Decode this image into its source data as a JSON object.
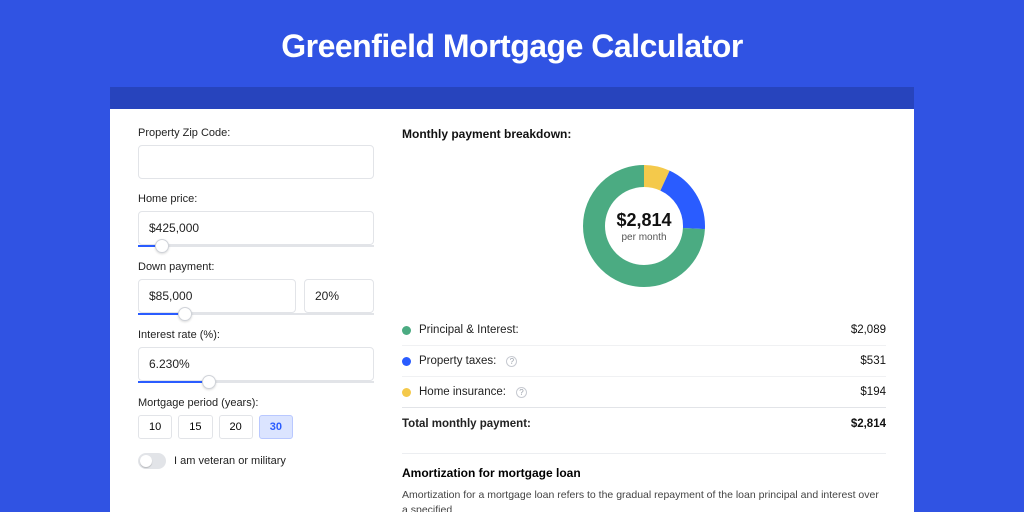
{
  "page": {
    "title": "Greenfield Mortgage Calculator",
    "background_color": "#3053e3",
    "header_band_color": "#2744bd",
    "card_background": "#ffffff"
  },
  "form": {
    "zip": {
      "label": "Property Zip Code:",
      "value": ""
    },
    "home_price": {
      "label": "Home price:",
      "value": "$425,000",
      "slider_pct": 10
    },
    "down_payment": {
      "label": "Down payment:",
      "value": "$85,000",
      "pct_value": "20%",
      "slider_pct": 20
    },
    "interest_rate": {
      "label": "Interest rate (%):",
      "value": "6.230%",
      "slider_pct": 30
    },
    "period": {
      "label": "Mortgage period (years):",
      "options": [
        "10",
        "15",
        "20",
        "30"
      ],
      "selected_index": 3
    },
    "veteran": {
      "label": "I am veteran or military",
      "checked": false
    }
  },
  "breakdown": {
    "section_title": "Monthly payment breakdown:",
    "center_value": "$2,814",
    "center_sub": "per month",
    "items": [
      {
        "label": "Principal & Interest:",
        "value": "$2,089",
        "color": "#4bab82",
        "pct": 74.2,
        "has_info": false
      },
      {
        "label": "Property taxes:",
        "value": "$531",
        "color": "#2a5cff",
        "pct": 18.9,
        "has_info": true
      },
      {
        "label": "Home insurance:",
        "value": "$194",
        "color": "#f4c94b",
        "pct": 6.9,
        "has_info": true
      }
    ],
    "total_label": "Total monthly payment:",
    "total_value": "$2,814"
  },
  "donut_style": {
    "radius": 50,
    "stroke_width": 22,
    "background": "#ffffff"
  },
  "amortization": {
    "title": "Amortization for mortgage loan",
    "body": "Amortization for a mortgage loan refers to the gradual repayment of the loan principal and interest over a specified"
  },
  "colors": {
    "input_border": "#e2e4e8",
    "slider_fill": "#2a5cff",
    "text": "#222222"
  }
}
